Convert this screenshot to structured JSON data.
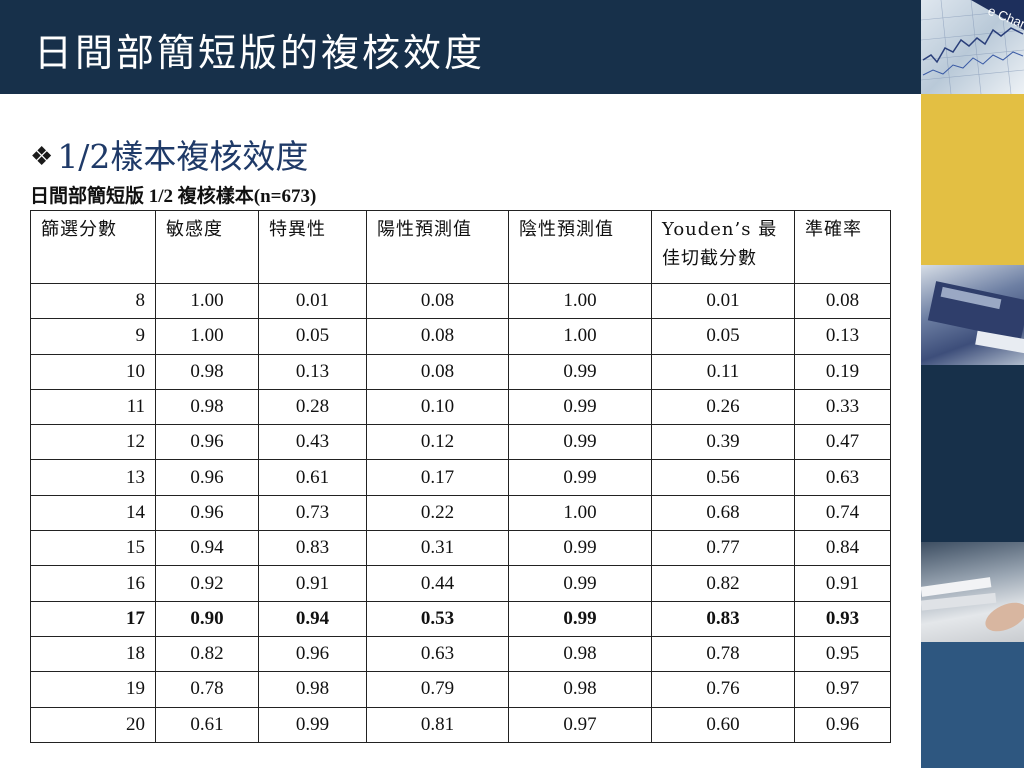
{
  "slide": {
    "title": "日間部簡短版的複核效度",
    "bullet_symbol": "❖",
    "subtitle": "1/2樣本複核效度"
  },
  "table": {
    "caption": "日間部簡短版 1/2 複核樣本(n=673)",
    "headers": [
      "篩選分數",
      "敏感度",
      "特異性",
      "陽性預測值",
      "陰性預測值",
      "Youden’s 最佳切截分數",
      "準確率"
    ],
    "rows": [
      [
        "8",
        "1.00",
        "0.01",
        "0.08",
        "1.00",
        "0.01",
        "0.08"
      ],
      [
        "9",
        "1.00",
        "0.05",
        "0.08",
        "1.00",
        "0.05",
        "0.13"
      ],
      [
        "10",
        "0.98",
        "0.13",
        "0.08",
        "0.99",
        "0.11",
        "0.19"
      ],
      [
        "11",
        "0.98",
        "0.28",
        "0.10",
        "0.99",
        "0.26",
        "0.33"
      ],
      [
        "12",
        "0.96",
        "0.43",
        "0.12",
        "0.99",
        "0.39",
        "0.47"
      ],
      [
        "13",
        "0.96",
        "0.61",
        "0.17",
        "0.99",
        "0.56",
        "0.63"
      ],
      [
        "14",
        "0.96",
        "0.73",
        "0.22",
        "1.00",
        "0.68",
        "0.74"
      ],
      [
        "15",
        "0.94",
        "0.83",
        "0.31",
        "0.99",
        "0.77",
        "0.84"
      ],
      [
        "16",
        "0.92",
        "0.91",
        "0.44",
        "0.99",
        "0.82",
        "0.91"
      ],
      [
        "17",
        "0.90",
        "0.94",
        "0.53",
        "0.99",
        "0.83",
        "0.93"
      ],
      [
        "18",
        "0.82",
        "0.96",
        "0.63",
        "0.98",
        "0.78",
        "0.95"
      ],
      [
        "19",
        "0.78",
        "0.98",
        "0.79",
        "0.98",
        "0.76",
        "0.97"
      ],
      [
        "20",
        "0.61",
        "0.99",
        "0.81",
        "0.97",
        "0.60",
        "0.96"
      ]
    ],
    "bold_row_score": "17"
  },
  "colors": {
    "title_bar": "#17304a",
    "subtitle_text": "#1f3a68",
    "accent_yellow": "#e3bf43",
    "accent_blue": "#2e5780"
  }
}
